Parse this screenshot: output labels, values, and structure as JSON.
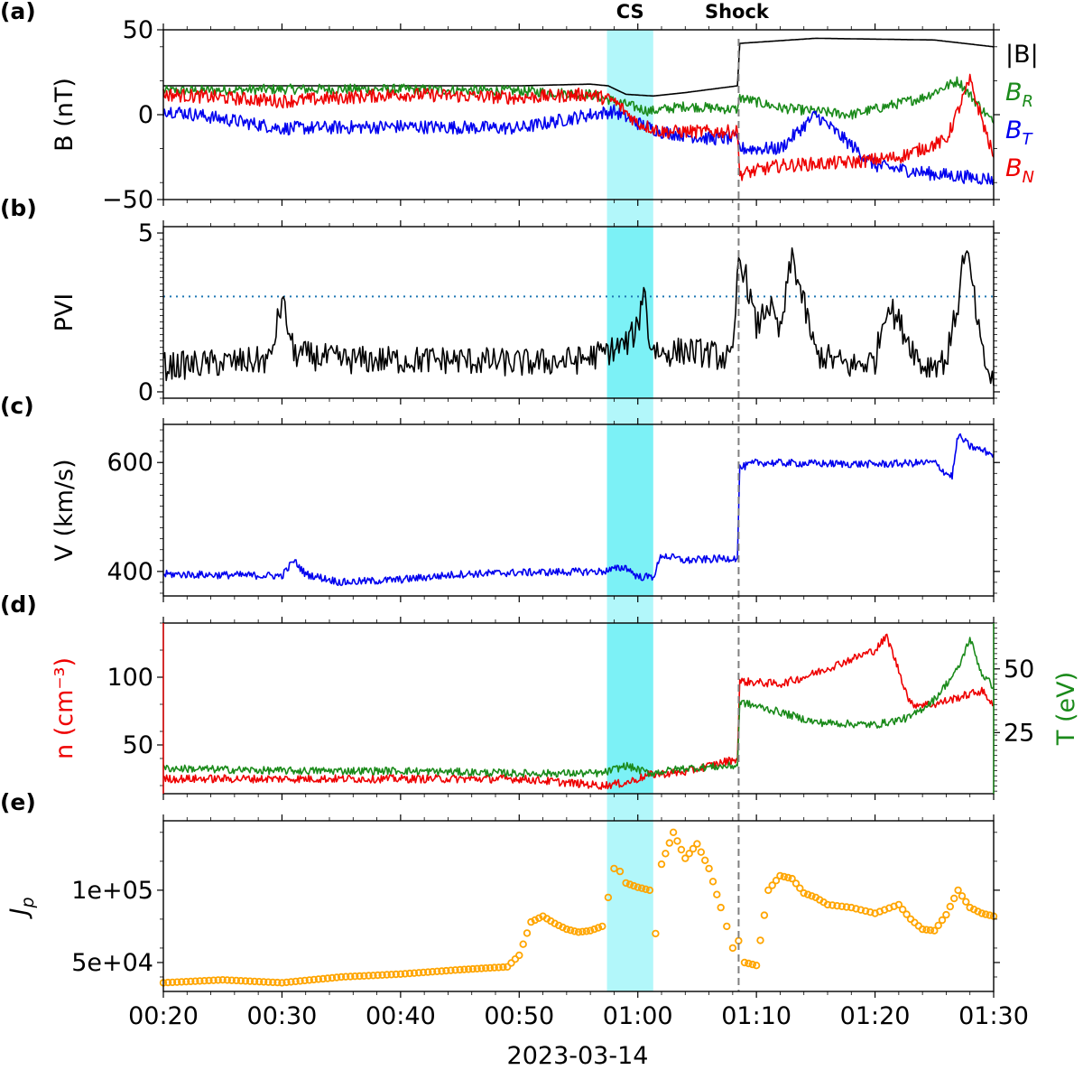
{
  "chart_data": {
    "type": "line",
    "xlabel": "2023-03-14",
    "x_ticks": [
      "00:20",
      "00:30",
      "00:40",
      "00:50",
      "01:00",
      "01:10",
      "01:20",
      "01:30"
    ],
    "x_range_minutes": [
      20,
      90
    ],
    "annotations": {
      "cs_label": "CS",
      "cs_interval_minutes": [
        57.4,
        61.3
      ],
      "cs_color": "#00e5ee",
      "shock_label": "Shock",
      "shock_minute": 68.5
    },
    "panels": [
      {
        "id": "a",
        "letter": "(a)",
        "ylabel": "B (nT)",
        "ylim": [
          -50,
          50
        ],
        "yticks": [
          "50",
          "0",
          "−50"
        ],
        "ytick_values": [
          50,
          0,
          -50
        ],
        "series": [
          {
            "name": "|B|",
            "color": "#000000",
            "t": [
              20,
              30,
              40,
              50,
              56,
              57.5,
              59,
              61.3,
              64,
              68.4,
              68.6,
              75,
              85,
              90
            ],
            "v": [
              17,
              17,
              17,
              17,
              18,
              17,
              12,
              11,
              13,
              17,
              42,
              45,
              44,
              40
            ]
          },
          {
            "name": "B_R",
            "color": "#1a8a1a",
            "t": [
              20,
              30,
              40,
              50,
              56,
              58,
              61,
              64,
              68.4,
              68.6,
              72,
              78,
              84,
              87,
              90
            ],
            "v": [
              14,
              15,
              15,
              14,
              12,
              8,
              2,
              5,
              3,
              10,
              4,
              0,
              10,
              20,
              -5
            ],
            "jitter": 3
          },
          {
            "name": "B_T",
            "color": "#0000ee",
            "t": [
              20,
              30,
              40,
              50,
              56,
              58,
              60,
              62,
              66,
              68.4,
              68.6,
              72,
              75,
              80,
              85,
              90
            ],
            "v": [
              3,
              -8,
              -7,
              -8,
              0,
              2,
              -5,
              -10,
              -14,
              -14,
              -20,
              -20,
              0,
              -30,
              -35,
              -38
            ],
            "jitter": 4
          },
          {
            "name": "B_N",
            "color": "#ee0000",
            "t": [
              20,
              30,
              40,
              50,
              56,
              58,
              60,
              62,
              66,
              68.4,
              68.6,
              72,
              78,
              82,
              86,
              88,
              90
            ],
            "v": [
              12,
              8,
              12,
              10,
              12,
              8,
              -5,
              -10,
              -10,
              -10,
              -35,
              -30,
              -28,
              -25,
              -15,
              20,
              -25
            ],
            "jitter": 4
          }
        ],
        "legend": [
          {
            "label": "|B|",
            "color": "#000000"
          },
          {
            "label": "B",
            "sub": "R",
            "color": "#1a8a1a"
          },
          {
            "label": "B",
            "sub": "T",
            "color": "#0000ee"
          },
          {
            "label": "B",
            "sub": "N",
            "color": "#ee0000"
          }
        ]
      },
      {
        "id": "b",
        "letter": "(b)",
        "ylabel": "PVI",
        "ylim": [
          -0.2,
          5.2
        ],
        "yticks": [
          "5",
          "0"
        ],
        "ytick_values": [
          5,
          0
        ],
        "threshold": 3,
        "threshold_color": "#1f77b4",
        "series": [
          {
            "name": "PVI",
            "color": "#000000",
            "t": [
              20,
              29,
              30,
              31,
              35,
              45,
              50,
              55,
              57,
              59,
              60,
              60.5,
              61,
              62,
              64,
              66,
              68,
              68.5,
              69,
              70,
              71,
              72,
              73,
              75,
              78,
              80,
              81,
              82,
              84,
              86,
              87,
              87.5,
              88,
              89,
              90
            ],
            "v": [
              0.8,
              1.0,
              2.9,
              1.2,
              1.0,
              1.0,
              0.9,
              1.0,
              1.2,
              1.5,
              2.0,
              3.4,
              1.5,
              1.2,
              1.3,
              1.2,
              1.0,
              4.2,
              3.8,
              2.0,
              2.8,
              1.8,
              4.3,
              1.2,
              0.8,
              1.0,
              2.8,
              2.2,
              0.8,
              1.0,
              2.8,
              4.4,
              3.9,
              1.2,
              0.2
            ],
            "jitter": 0.45
          }
        ]
      },
      {
        "id": "c",
        "letter": "(c)",
        "ylabel": "V (km/s)",
        "ylim": [
          355,
          670
        ],
        "yticks": [
          "600",
          "400"
        ],
        "ytick_values": [
          600,
          400
        ],
        "series": [
          {
            "name": "V",
            "color": "#0000ee",
            "t": [
              20,
              30,
              31,
              32,
              35,
              40,
              45,
              50,
              57,
              59,
              60,
              61.3,
              62,
              64,
              68.4,
              68.6,
              70,
              75,
              80,
              82,
              85,
              86,
              86.5,
              87,
              88,
              90
            ],
            "v": [
              395,
              392,
              420,
              395,
              380,
              385,
              395,
              398,
              400,
              408,
              390,
              390,
              430,
              420,
              425,
              590,
              600,
              598,
              597,
              598,
              600,
              580,
              575,
              650,
              630,
              615
            ],
            "jitter": 7
          }
        ]
      },
      {
        "id": "d",
        "letter": "(d)",
        "ylabel_left": "n (cm⁻³)",
        "ylabel_right": "T (eV)",
        "ylim_left": [
          14,
          140
        ],
        "yticks_left": [
          "100",
          "50"
        ],
        "ytick_values_left": [
          100,
          50
        ],
        "ylim_right": [
          1,
          68
        ],
        "yticks_right": [
          "50",
          "25"
        ],
        "ytick_values_right": [
          50,
          25
        ],
        "series": [
          {
            "name": "n",
            "axis": "left",
            "color": "#ee0000",
            "t": [
              20,
              30,
              40,
              50,
              57,
              59,
              61,
              64,
              68.4,
              68.6,
              72,
              74,
              77,
              80,
              81,
              83,
              85,
              87,
              89,
              90
            ],
            "v": [
              25,
              25,
              25,
              25,
              20,
              22,
              28,
              30,
              40,
              97,
              95,
              100,
              110,
              120,
              130,
              80,
              80,
              85,
              90,
              80
            ],
            "jitter": 3
          },
          {
            "name": "T",
            "axis": "right",
            "color": "#1a8a1a",
            "t": [
              20,
              30,
              40,
              50,
              57,
              59,
              61,
              64,
              68.4,
              68.6,
              72,
              75,
              80,
              83,
              85,
              87,
              88,
              89,
              90
            ],
            "v": [
              11,
              10,
              10,
              9,
              9,
              12,
              9,
              11,
              12,
              37,
              33,
              29,
              28,
              31,
              38,
              50,
              62,
              48,
              43
            ],
            "jitter": 1.5
          }
        ]
      },
      {
        "id": "e",
        "letter": "(e)",
        "ylabel": "J",
        "ylabel_sub": "p",
        "ylim": [
          30000,
          148000
        ],
        "yticks": [
          "1e+05",
          "5e+04"
        ],
        "ytick_values": [
          100000,
          50000
        ],
        "series": [
          {
            "name": "J_p",
            "type": "scatter",
            "color": "#ffa500",
            "t": [
              20,
              25,
              30,
              35,
              40,
              45,
              49,
              50,
              51,
              52,
              53,
              54,
              55,
              56,
              57,
              57.5,
              58,
              58.5,
              59,
              60,
              61,
              61.5,
              62,
              63,
              64,
              65,
              66,
              67,
              67.5,
              68,
              68.5,
              69,
              70,
              71,
              72,
              73,
              74,
              75,
              76,
              78,
              80,
              82,
              83,
              84,
              85,
              86,
              87,
              88,
              89,
              90
            ],
            "v": [
              36000,
              38000,
              36000,
              40000,
              42000,
              45000,
              47000,
              55000,
              78000,
              82000,
              77000,
              73000,
              71000,
              72000,
              75000,
              95000,
              115000,
              113000,
              105000,
              102000,
              100000,
              70000,
              118000,
              140000,
              122000,
              132000,
              115000,
              88000,
              75000,
              60000,
              65000,
              50000,
              48000,
              100000,
              110000,
              108000,
              98000,
              95000,
              90000,
              88000,
              84000,
              90000,
              80000,
              73000,
              72000,
              83000,
              100000,
              88000,
              84000,
              82000
            ]
          }
        ]
      }
    ]
  }
}
